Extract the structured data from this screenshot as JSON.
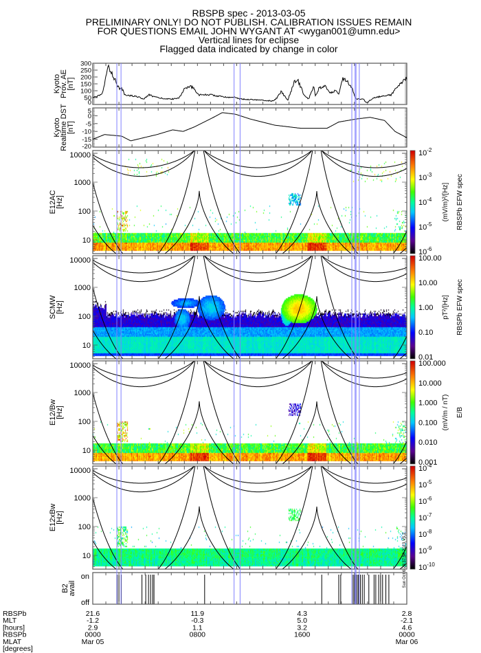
{
  "title": {
    "lines": [
      "RBSPB spec - 2013-03-05",
      "PRELIMINARY ONLY! DO NOT PUBLISH. CALIBRATION ISSUES REMAIN",
      "FOR QUESTIONS EMAIL JOHN WYGANT AT <wygan001@umn.edu>",
      "Vertical lines for eclipse",
      "Flagged data indicated by change in color"
    ]
  },
  "colors": {
    "eclipse_line": "#8080ff",
    "line": "#000000",
    "axis": "#555555"
  },
  "eclipse_lines_hours": [
    1.84,
    2.16,
    10.8,
    11.26,
    19.8,
    20.05,
    20.12,
    20.37
  ],
  "chart_data": [
    {
      "type": "line",
      "id": "ae",
      "ylabel_lines": [
        "Kyoto",
        "Prov. AE",
        "[nT]"
      ],
      "xlim": [
        0,
        24
      ],
      "ylim": [
        0,
        300
      ],
      "yticks": [
        "300",
        "250",
        "200",
        "150",
        "100",
        "50",
        "0"
      ],
      "ytick_values": [
        300,
        250,
        200,
        150,
        100,
        50,
        0
      ],
      "x": [
        0,
        0.7,
        0.9,
        1.2,
        1.6,
        2.0,
        2.3,
        2.4,
        3.3,
        3.9,
        4.3,
        4.9,
        5.7,
        6.2,
        6.6,
        7.0,
        7.5,
        7.8,
        8.1,
        9.1,
        9.6,
        10.7,
        10.8,
        11.2,
        12.3,
        13.8,
        14.1,
        14.4,
        14.9,
        15.4,
        15.7,
        16.2,
        16.5,
        16.9,
        17.0,
        17.3,
        17.8,
        18.1,
        18.5,
        18.8,
        19.1,
        19.4,
        19.8,
        20.1,
        20.7,
        20.9,
        21.5,
        22.8,
        23.2,
        24.0
      ],
      "y": [
        50,
        70,
        150,
        280,
        200,
        120,
        110,
        70,
        60,
        40,
        70,
        50,
        40,
        40,
        50,
        110,
        130,
        110,
        70,
        70,
        60,
        50,
        60,
        40,
        35,
        25,
        50,
        95,
        30,
        160,
        170,
        60,
        40,
        140,
        60,
        120,
        130,
        80,
        100,
        80,
        190,
        180,
        120,
        40,
        40,
        10,
        50,
        70,
        120,
        190
      ]
    },
    {
      "type": "line",
      "id": "dst",
      "ylabel_lines": [
        "Kyoto",
        "Realtime DST",
        "[nT]"
      ],
      "xlim": [
        0,
        24
      ],
      "ylim": [
        -20,
        5
      ],
      "yticks": [
        "5",
        "0",
        "-5",
        "-10",
        "-15",
        "-20"
      ],
      "ytick_values": [
        5,
        0,
        -5,
        -10,
        -15,
        -20
      ],
      "x": [
        0,
        0.9,
        2.2,
        2.9,
        4.9,
        6.1,
        6.9,
        7.8,
        9.0,
        9.9,
        10.9,
        12.0,
        13.9,
        15.9,
        17.9,
        18.8,
        20.2,
        21.2,
        22.3,
        23.1,
        24.0
      ],
      "y": [
        -15,
        -12,
        -13,
        -16,
        -12,
        -9,
        -10,
        -7,
        -2,
        2,
        1,
        -2,
        -6,
        -8,
        -8,
        -4,
        -2,
        -1,
        -3,
        -10,
        -14
      ]
    },
    {
      "type": "heatmap",
      "id": "e12ac",
      "ylabel_lines": [
        "E12AC",
        "[Hz]"
      ],
      "yscale": "log",
      "ylim_hz": [
        3.3,
        12600
      ],
      "yticks": [
        "10000",
        "1000",
        "100",
        "10"
      ],
      "colorbar": {
        "ticks": [
          {
            "b": "10",
            "e": "-2"
          },
          {
            "b": "10",
            "e": "-3"
          },
          {
            "b": "10",
            "e": "-4"
          },
          {
            "b": "10",
            "e": "-5"
          },
          {
            "b": "10",
            "e": "-6"
          }
        ],
        "unit": "(mV/m)²/[Hz]",
        "title": "RBSPb EFW spec"
      }
    },
    {
      "type": "heatmap",
      "id": "scmw",
      "ylabel_lines": [
        "SCMW",
        "[Hz]"
      ],
      "yscale": "log",
      "ylim_hz": [
        3.3,
        12600
      ],
      "yticks": [
        "10000",
        "1000",
        "100",
        "10"
      ],
      "colorbar": {
        "ticks": [
          {
            "b": "100.00",
            "e": ""
          },
          {
            "b": "10.00",
            "e": ""
          },
          {
            "b": "1.00",
            "e": ""
          },
          {
            "b": "0.10",
            "e": ""
          },
          {
            "b": "0.01",
            "e": ""
          }
        ],
        "unit": "pT²/[Hz]",
        "title": "RBSPb EFW spec"
      }
    },
    {
      "type": "heatmap",
      "id": "e12bw",
      "ylabel_lines": [
        "E12/Bw",
        "[Hz]"
      ],
      "yscale": "log",
      "ylim_hz": [
        3.3,
        12600
      ],
      "yticks": [
        "10000",
        "1000",
        "100",
        "10"
      ],
      "colorbar": {
        "ticks": [
          {
            "b": "100.000",
            "e": ""
          },
          {
            "b": "10.000",
            "e": ""
          },
          {
            "b": "1.000",
            "e": ""
          },
          {
            "b": "0.100",
            "e": ""
          },
          {
            "b": "0.010",
            "e": ""
          },
          {
            "b": "0.001",
            "e": ""
          }
        ],
        "unit": "(mV/m / nT)",
        "title": "E/B"
      }
    },
    {
      "type": "heatmap",
      "id": "e12xbw",
      "ylabel_lines": [
        "E12xBw",
        "[Hz]"
      ],
      "yscale": "log",
      "ylim_hz": [
        3.3,
        12600
      ],
      "yticks": [
        "10000",
        "1000",
        "100",
        "10"
      ],
      "colorbar": {
        "ticks": [
          {
            "b": "10",
            "e": "-4"
          },
          {
            "b": "10",
            "e": "-5"
          },
          {
            "b": "10",
            "e": "-6"
          },
          {
            "b": "10",
            "e": "-7"
          },
          {
            "b": "10",
            "e": "-8"
          },
          {
            "b": "10",
            "e": "-9"
          },
          {
            "b": "10",
            "e": "-10"
          }
        ],
        "unit": "",
        "title": ""
      }
    }
  ],
  "overlay_curves": {
    "perigee_hours": [
      8.14,
      17.12
    ],
    "period_hours": 8.98,
    "curves": [
      {
        "peak_hz": 22400,
        "apogee_hz": 3160
      },
      {
        "peak_hz": 29500,
        "apogee_hz": 1585
      },
      {
        "peak_hz": 363000,
        "apogee_hz": 1.45
      },
      {
        "peak_hz": 500,
        "apogee_hz": 1.6
      }
    ]
  },
  "b2_avail": {
    "label_lines": [
      "B2",
      "avail"
    ],
    "on_label": "on",
    "off_label": "off",
    "on_hours": [
      1.87,
      2.0,
      2.18,
      3.76,
      4.05,
      4.26,
      4.42,
      4.58,
      4.68,
      8.55,
      17.5,
      18.8,
      18.95,
      19.8,
      19.9,
      20.0,
      20.1,
      20.2,
      20.3,
      20.45,
      20.6,
      20.75,
      21.1,
      21.5,
      21.63,
      21.85,
      22.0,
      22.15,
      22.4,
      22.63
    ]
  },
  "x_axis": {
    "row_labels": [
      "RBSPb",
      "MLT",
      "[hours]",
      "RBSPb",
      "MLAT",
      "[degrees]",
      "RBSPb"
    ],
    "columns": [
      {
        "hour": 0,
        "v1": "21.6",
        "v2": "-1.2",
        "v3": "2.9",
        "time": "0000",
        "date": "Mar 05"
      },
      {
        "hour": 8,
        "v1": "11.9",
        "v2": "-0.3",
        "v3": "1.1",
        "time": "0800",
        "date": ""
      },
      {
        "hour": 16,
        "v1": "4.3",
        "v2": "5.0",
        "v3": "3.2",
        "time": "1600",
        "date": ""
      },
      {
        "hour": 24,
        "v1": "2.8",
        "v2": "-2.1",
        "v3": "4.6",
        "time": "0000",
        "date": "Mar 06"
      }
    ]
  },
  "stamp": "Sun Oct 6 23:37:58 2013 V5.2"
}
